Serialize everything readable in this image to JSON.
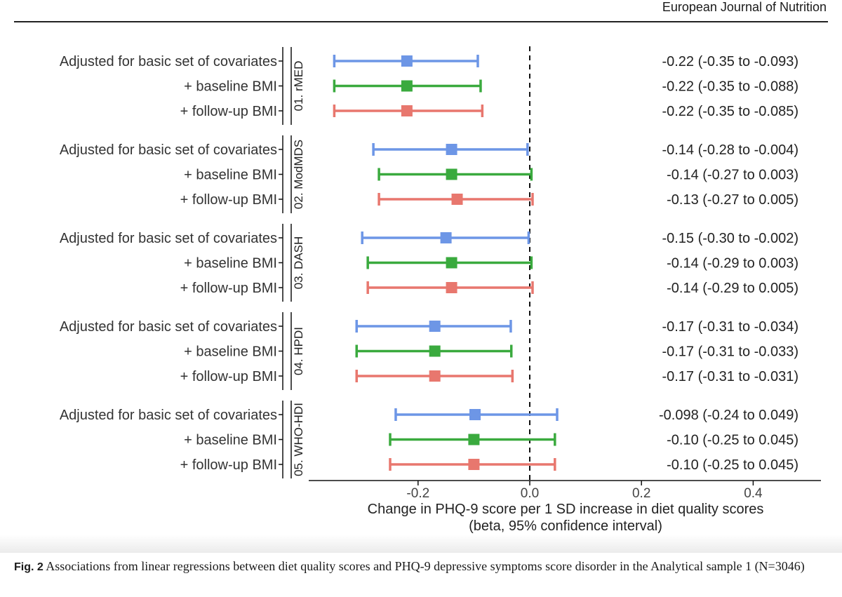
{
  "journal": "European Journal of Nutrition",
  "caption": {
    "fig_label": "Fig. 2",
    "text": "Associations from linear regressions between diet quality scores and PHQ-9 depressive symptoms score disorder in the Analytical sample 1 (N=3046)"
  },
  "chart_data": {
    "type": "forest",
    "xlabel": "Change in PHQ-9 score per 1 SD increase in diet quality scores",
    "xlabel2": "(beta, 95% confidence interval)",
    "xlim": [
      -0.44,
      0.52
    ],
    "xticks": [
      -0.2,
      0.0,
      0.2,
      0.4
    ],
    "xtick_labels": [
      "-0.2",
      "0.0",
      "0.2",
      "0.4"
    ],
    "reference_line": 0.0,
    "colors": {
      "Adjusted for basic set of covariates": "#6d96e6",
      "+ baseline BMI": "#3aaa3e",
      "+ follow-up BMI": "#e8776e"
    },
    "groups": [
      {
        "name": "01. rMED",
        "rows": [
          {
            "label": "Adjusted for basic set of covariates",
            "beta": -0.22,
            "lo": -0.35,
            "hi": -0.093,
            "text": "-0.22 (-0.35 to -0.093)"
          },
          {
            "label": "+ baseline BMI",
            "beta": -0.22,
            "lo": -0.35,
            "hi": -0.088,
            "text": "-0.22 (-0.35 to -0.088)"
          },
          {
            "label": "+ follow-up BMI",
            "beta": -0.22,
            "lo": -0.35,
            "hi": -0.085,
            "text": "-0.22 (-0.35 to -0.085)"
          }
        ]
      },
      {
        "name": "02. ModMDS",
        "rows": [
          {
            "label": "Adjusted for basic set of covariates",
            "beta": -0.14,
            "lo": -0.28,
            "hi": -0.004,
            "text": "-0.14 (-0.28 to -0.004)"
          },
          {
            "label": "+ baseline BMI",
            "beta": -0.14,
            "lo": -0.27,
            "hi": 0.003,
            "text": "-0.14 (-0.27 to 0.003)"
          },
          {
            "label": "+ follow-up BMI",
            "beta": -0.13,
            "lo": -0.27,
            "hi": 0.005,
            "text": "-0.13 (-0.27 to 0.005)"
          }
        ]
      },
      {
        "name": "03. DASH",
        "rows": [
          {
            "label": "Adjusted for basic set of covariates",
            "beta": -0.15,
            "lo": -0.3,
            "hi": -0.002,
            "text": "-0.15 (-0.30 to -0.002)"
          },
          {
            "label": "+ baseline BMI",
            "beta": -0.14,
            "lo": -0.29,
            "hi": 0.003,
            "text": "-0.14 (-0.29 to 0.003)"
          },
          {
            "label": "+ follow-up BMI",
            "beta": -0.14,
            "lo": -0.29,
            "hi": 0.005,
            "text": "-0.14 (-0.29 to 0.005)"
          }
        ]
      },
      {
        "name": "04. HPDI",
        "rows": [
          {
            "label": "Adjusted for basic set of covariates",
            "beta": -0.17,
            "lo": -0.31,
            "hi": -0.034,
            "text": "-0.17 (-0.31 to -0.034)"
          },
          {
            "label": "+ baseline BMI",
            "beta": -0.17,
            "lo": -0.31,
            "hi": -0.033,
            "text": "-0.17 (-0.31 to -0.033)"
          },
          {
            "label": "+ follow-up BMI",
            "beta": -0.17,
            "lo": -0.31,
            "hi": -0.031,
            "text": "-0.17 (-0.31 to -0.031)"
          }
        ]
      },
      {
        "name": "05. WHO-HDI",
        "rows": [
          {
            "label": "Adjusted for basic set of covariates",
            "beta": -0.098,
            "lo": -0.24,
            "hi": 0.049,
            "text": "-0.098 (-0.24 to 0.049)"
          },
          {
            "label": "+ baseline BMI",
            "beta": -0.1,
            "lo": -0.25,
            "hi": 0.045,
            "text": "-0.10 (-0.25 to 0.045)"
          },
          {
            "label": "+ follow-up BMI",
            "beta": -0.1,
            "lo": -0.25,
            "hi": 0.045,
            "text": "-0.10 (-0.25 to 0.045)"
          }
        ]
      }
    ]
  }
}
